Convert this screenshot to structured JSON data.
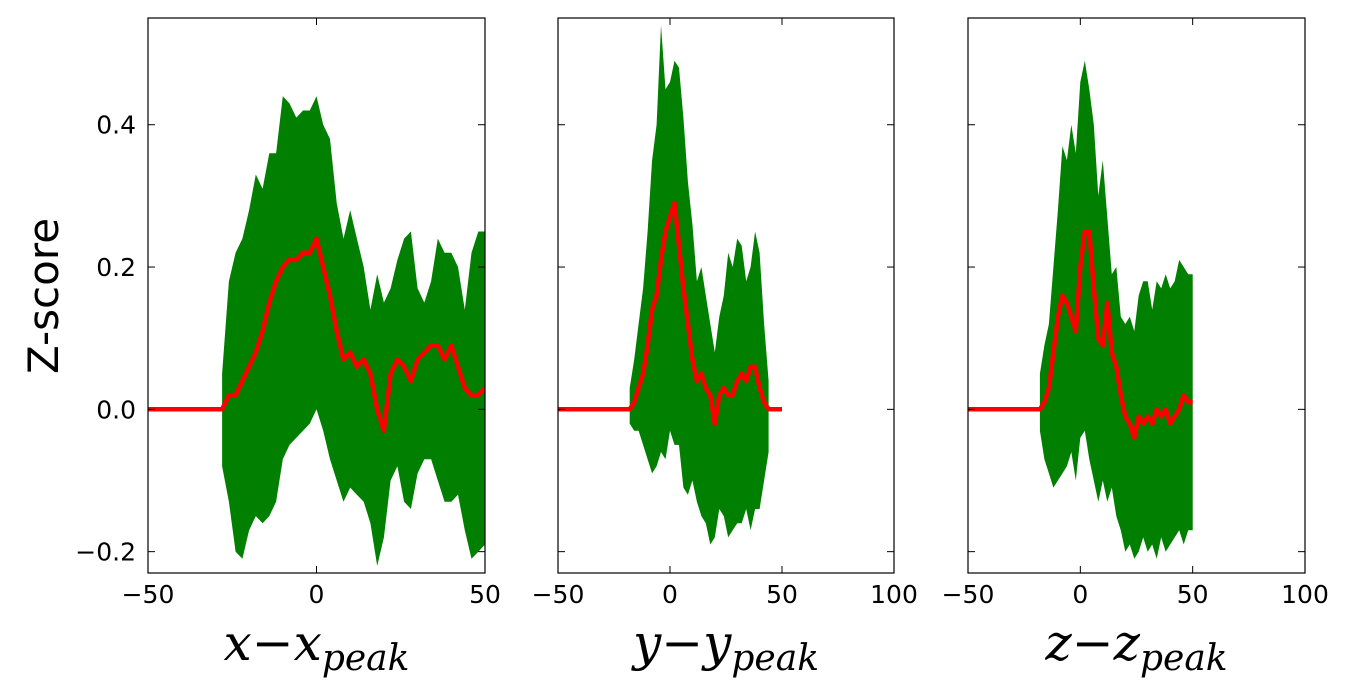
{
  "figure": {
    "ylabel": "Z-score"
  },
  "chart_data": [
    {
      "type": "line",
      "xlabel_main": "x−x",
      "xlabel_sub": "peak",
      "xlim": [
        -50,
        50
      ],
      "ylim": [
        -0.23,
        0.55
      ],
      "xticks": [
        -50,
        0,
        50
      ],
      "xtick_labels": [
        "−50",
        "0",
        "50"
      ],
      "yticks": [
        -0.2,
        0.0,
        0.2,
        0.4
      ],
      "ytick_labels": [
        "−0.2",
        "0.0",
        "0.2",
        "0.4"
      ],
      "show_yticks": true,
      "colors": {
        "band": "#007f00",
        "line": "#ff0000"
      },
      "series": [
        {
          "role": "mean-line",
          "x": [
            -50,
            -28,
            -26,
            -24,
            -22,
            -20,
            -18,
            -16,
            -14,
            -12,
            -10,
            -8,
            -6,
            -4,
            -2,
            0,
            2,
            4,
            6,
            8,
            10,
            12,
            14,
            16,
            18,
            20,
            22,
            24,
            26,
            28,
            30,
            32,
            34,
            36,
            38,
            40,
            42,
            44,
            46,
            48,
            50
          ],
          "y": [
            0,
            0,
            0.02,
            0.02,
            0.04,
            0.06,
            0.08,
            0.11,
            0.15,
            0.18,
            0.2,
            0.21,
            0.21,
            0.22,
            0.22,
            0.24,
            0.2,
            0.16,
            0.11,
            0.07,
            0.08,
            0.06,
            0.07,
            0.05,
            0,
            -0.03,
            0.05,
            0.07,
            0.06,
            0.04,
            0.07,
            0.08,
            0.09,
            0.09,
            0.07,
            0.09,
            0.06,
            0.03,
            0.02,
            0.02,
            0.03
          ]
        },
        {
          "role": "upper-band",
          "x": [
            -28,
            -26,
            -24,
            -22,
            -20,
            -18,
            -16,
            -14,
            -12,
            -10,
            -8,
            -6,
            -4,
            -2,
            0,
            2,
            4,
            6,
            8,
            10,
            12,
            14,
            16,
            18,
            20,
            22,
            24,
            26,
            28,
            30,
            32,
            34,
            36,
            38,
            40,
            42,
            44,
            46,
            48,
            50
          ],
          "y": [
            0.05,
            0.18,
            0.22,
            0.24,
            0.28,
            0.33,
            0.31,
            0.36,
            0.36,
            0.44,
            0.43,
            0.41,
            0.42,
            0.42,
            0.44,
            0.4,
            0.38,
            0.29,
            0.24,
            0.28,
            0.24,
            0.2,
            0.14,
            0.19,
            0.15,
            0.17,
            0.21,
            0.24,
            0.25,
            0.17,
            0.15,
            0.18,
            0.24,
            0.22,
            0.22,
            0.2,
            0.14,
            0.22,
            0.25,
            0.25
          ]
        },
        {
          "role": "lower-band",
          "x": [
            -28,
            -26,
            -24,
            -22,
            -20,
            -18,
            -16,
            -14,
            -12,
            -10,
            -8,
            -6,
            -4,
            -2,
            0,
            2,
            4,
            6,
            8,
            10,
            12,
            14,
            16,
            18,
            20,
            22,
            24,
            26,
            28,
            30,
            32,
            34,
            36,
            38,
            40,
            42,
            44,
            46,
            48,
            50
          ],
          "y": [
            -0.08,
            -0.13,
            -0.2,
            -0.21,
            -0.17,
            -0.15,
            -0.16,
            -0.15,
            -0.13,
            -0.07,
            -0.05,
            -0.04,
            -0.03,
            -0.02,
            0.0,
            -0.03,
            -0.07,
            -0.1,
            -0.13,
            -0.11,
            -0.12,
            -0.13,
            -0.16,
            -0.22,
            -0.18,
            -0.1,
            -0.08,
            -0.13,
            -0.14,
            -0.09,
            -0.07,
            -0.07,
            -0.1,
            -0.13,
            -0.13,
            -0.12,
            -0.17,
            -0.21,
            -0.2,
            -0.19
          ]
        }
      ]
    },
    {
      "type": "line",
      "xlabel_main": "y−y",
      "xlabel_sub": "peak",
      "xlim": [
        -50,
        100
      ],
      "ylim": [
        -0.23,
        0.55
      ],
      "xticks": [
        -50,
        0,
        50,
        100
      ],
      "xtick_labels": [
        "−50",
        "0",
        "50",
        "100"
      ],
      "yticks": [
        -0.2,
        0.0,
        0.2,
        0.4
      ],
      "ytick_labels": [],
      "show_yticks": false,
      "colors": {
        "band": "#007f00",
        "line": "#ff0000"
      },
      "series": [
        {
          "role": "mean-line",
          "x": [
            -50,
            -18,
            -16,
            -14,
            -12,
            -10,
            -8,
            -6,
            -4,
            -2,
            0,
            2,
            4,
            6,
            8,
            10,
            12,
            14,
            16,
            18,
            20,
            22,
            24,
            26,
            28,
            30,
            32,
            34,
            36,
            38,
            40,
            42,
            44,
            46,
            48,
            50
          ],
          "y": [
            0,
            0,
            0.01,
            0.03,
            0.05,
            0.09,
            0.14,
            0.16,
            0.21,
            0.25,
            0.27,
            0.29,
            0.23,
            0.17,
            0.12,
            0.07,
            0.04,
            0.05,
            0.03,
            0.02,
            -0.02,
            0.02,
            0.03,
            0.02,
            0.02,
            0.04,
            0.05,
            0.04,
            0.06,
            0.06,
            0.03,
            0.01,
            0.0,
            0.0,
            0.0,
            0.0
          ]
        },
        {
          "role": "upper-band",
          "x": [
            -18,
            -16,
            -14,
            -12,
            -10,
            -8,
            -6,
            -4,
            -2,
            0,
            2,
            4,
            6,
            8,
            10,
            12,
            14,
            16,
            18,
            20,
            22,
            24,
            26,
            28,
            30,
            32,
            34,
            36,
            38,
            40,
            42,
            44
          ],
          "y": [
            0.03,
            0.07,
            0.12,
            0.17,
            0.25,
            0.35,
            0.4,
            0.54,
            0.45,
            0.46,
            0.49,
            0.48,
            0.41,
            0.32,
            0.26,
            0.18,
            0.2,
            0.16,
            0.12,
            0.08,
            0.13,
            0.16,
            0.22,
            0.2,
            0.24,
            0.23,
            0.18,
            0.2,
            0.25,
            0.22,
            0.12,
            0.04
          ]
        },
        {
          "role": "lower-band",
          "x": [
            -18,
            -16,
            -14,
            -12,
            -10,
            -8,
            -6,
            -4,
            -2,
            0,
            2,
            4,
            6,
            8,
            10,
            12,
            14,
            16,
            18,
            20,
            22,
            24,
            26,
            28,
            30,
            32,
            34,
            36,
            38,
            40,
            42,
            44
          ],
          "y": [
            -0.02,
            -0.03,
            -0.03,
            -0.05,
            -0.07,
            -0.09,
            -0.08,
            -0.06,
            -0.07,
            -0.03,
            -0.05,
            -0.05,
            -0.11,
            -0.12,
            -0.1,
            -0.13,
            -0.15,
            -0.16,
            -0.19,
            -0.18,
            -0.14,
            -0.15,
            -0.18,
            -0.17,
            -0.16,
            -0.16,
            -0.14,
            -0.17,
            -0.14,
            -0.14,
            -0.1,
            -0.06
          ]
        }
      ]
    },
    {
      "type": "line",
      "xlabel_main": "z−z",
      "xlabel_sub": "peak",
      "xlim": [
        -50,
        100
      ],
      "ylim": [
        -0.23,
        0.55
      ],
      "xticks": [
        -50,
        0,
        50,
        100
      ],
      "xtick_labels": [
        "−50",
        "0",
        "50",
        "100"
      ],
      "yticks": [
        -0.2,
        0.0,
        0.2,
        0.4
      ],
      "ytick_labels": [],
      "show_yticks": false,
      "colors": {
        "band": "#007f00",
        "line": "#ff0000"
      },
      "series": [
        {
          "role": "mean-line",
          "x": [
            -50,
            -18,
            -16,
            -14,
            -12,
            -10,
            -8,
            -6,
            -4,
            -2,
            0,
            2,
            4,
            6,
            8,
            10,
            12,
            14,
            16,
            18,
            20,
            22,
            24,
            26,
            28,
            30,
            32,
            34,
            36,
            38,
            40,
            42,
            44,
            46,
            48,
            50
          ],
          "y": [
            0,
            0,
            0.01,
            0.03,
            0.08,
            0.13,
            0.16,
            0.15,
            0.13,
            0.11,
            0.2,
            0.25,
            0.25,
            0.17,
            0.1,
            0.09,
            0.15,
            0.08,
            0.06,
            0.02,
            -0.01,
            -0.02,
            -0.04,
            -0.01,
            -0.02,
            -0.01,
            -0.02,
            0.0,
            -0.01,
            0.0,
            -0.02,
            -0.01,
            0.0,
            0.02,
            0.01,
            0.01
          ]
        },
        {
          "role": "upper-band",
          "x": [
            -18,
            -16,
            -14,
            -12,
            -10,
            -8,
            -6,
            -4,
            -2,
            0,
            2,
            4,
            6,
            8,
            10,
            12,
            14,
            16,
            18,
            20,
            22,
            24,
            26,
            28,
            30,
            32,
            34,
            36,
            38,
            40,
            42,
            44,
            46,
            48,
            50
          ],
          "y": [
            0.05,
            0.09,
            0.12,
            0.2,
            0.28,
            0.37,
            0.35,
            0.4,
            0.36,
            0.46,
            0.49,
            0.45,
            0.4,
            0.3,
            0.35,
            0.27,
            0.19,
            0.2,
            0.13,
            0.12,
            0.13,
            0.11,
            0.16,
            0.18,
            0.18,
            0.14,
            0.18,
            0.17,
            0.19,
            0.17,
            0.18,
            0.21,
            0.2,
            0.19,
            0.19
          ]
        },
        {
          "role": "lower-band",
          "x": [
            -18,
            -16,
            -14,
            -12,
            -10,
            -8,
            -6,
            -4,
            -2,
            0,
            2,
            4,
            6,
            8,
            10,
            12,
            14,
            16,
            18,
            20,
            22,
            24,
            26,
            28,
            30,
            32,
            34,
            36,
            38,
            40,
            42,
            44,
            46,
            48,
            50
          ],
          "y": [
            -0.03,
            -0.07,
            -0.09,
            -0.11,
            -0.1,
            -0.09,
            -0.08,
            -0.06,
            -0.1,
            -0.04,
            -0.03,
            -0.07,
            -0.1,
            -0.13,
            -0.1,
            -0.13,
            -0.11,
            -0.15,
            -0.17,
            -0.2,
            -0.19,
            -0.21,
            -0.2,
            -0.18,
            -0.2,
            -0.19,
            -0.21,
            -0.18,
            -0.2,
            -0.19,
            -0.18,
            -0.17,
            -0.19,
            -0.17,
            -0.17
          ]
        }
      ]
    }
  ]
}
